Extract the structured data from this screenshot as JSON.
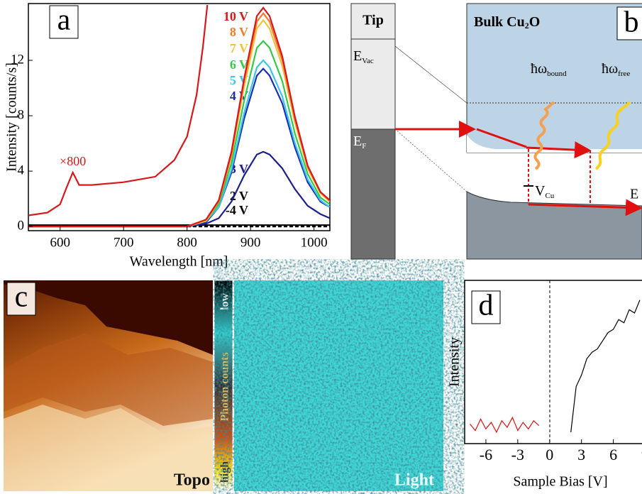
{
  "chart_data": [
    {
      "type": "line",
      "panel": "a",
      "y_label": "Intensity [counts/s]",
      "x_label": "Wavelength [nm]",
      "x": [
        550,
        600,
        700,
        800,
        830,
        850,
        870,
        890,
        910,
        920,
        930,
        950,
        970,
        990,
        1010,
        1025
      ],
      "xlim": [
        550,
        1025
      ],
      "ylim": [
        -0.3,
        16.1
      ],
      "xticks": [
        600,
        700,
        800,
        900,
        1000
      ],
      "yticks": [
        0,
        4,
        8,
        12
      ],
      "series": [
        {
          "name": "10 V",
          "color": "#d7191c",
          "values": [
            0,
            0,
            0,
            0,
            0.5,
            1.9,
            5.4,
            10.7,
            15.2,
            15.8,
            15.2,
            12.3,
            7.9,
            4.4,
            2.5,
            1.9
          ]
        },
        {
          "name": "8 V",
          "color": "#ef7d2d",
          "values": [
            0,
            0,
            0,
            0,
            0.5,
            1.8,
            5.2,
            10.5,
            14.8,
            15.4,
            14.8,
            12.0,
            7.7,
            4.3,
            2.5,
            1.8
          ]
        },
        {
          "name": "7 V",
          "color": "#f5c23c",
          "values": [
            0,
            0,
            0,
            0,
            0.4,
            1.8,
            5.1,
            10.1,
            14.3,
            14.9,
            14.3,
            11.6,
            7.5,
            4.2,
            2.4,
            1.8
          ]
        },
        {
          "name": "6 V",
          "color": "#35c94a",
          "values": [
            0,
            0,
            0,
            0,
            0.4,
            1.6,
            4.6,
            9.1,
            12.9,
            13.4,
            12.9,
            10.5,
            6.7,
            3.8,
            2.1,
            1.6
          ]
        },
        {
          "name": "5 V",
          "color": "#3cc5e8",
          "values": [
            0,
            0,
            0,
            0,
            0.4,
            1.4,
            4.1,
            8.2,
            11.5,
            12.0,
            11.5,
            9.4,
            6.0,
            3.4,
            1.9,
            1.4
          ]
        },
        {
          "name": "4 V",
          "color": "#1a2fb4",
          "values": [
            0,
            0,
            0,
            0,
            0.3,
            1.4,
            3.9,
            7.8,
            10.9,
            11.4,
            10.9,
            8.9,
            5.7,
            3.2,
            1.8,
            1.4
          ]
        },
        {
          "name": "3 V",
          "color": "#1c1f8c",
          "values": [
            0,
            0,
            0,
            0,
            0.2,
            0.6,
            1.8,
            3.7,
            5.2,
            5.4,
            5.2,
            4.2,
            2.7,
            1.5,
            0.9,
            0.6
          ]
        },
        {
          "name": "2 V",
          "color": "#000000",
          "values": [
            0.1,
            0.1,
            0.1,
            0.1,
            0.1,
            0.1,
            0.1,
            0.1,
            0.1,
            0.1,
            0.1,
            0.1,
            0.1,
            0.1,
            0.1,
            0.1
          ]
        },
        {
          "name": "-4 V",
          "color": "#000000",
          "dash": true,
          "values": [
            0,
            0,
            0,
            0,
            0,
            0,
            0,
            0,
            0,
            0,
            0,
            0,
            0,
            0,
            0,
            0
          ]
        },
        {
          "name": "×800",
          "color": "#d7191c",
          "x": [
            550,
            580,
            600,
            610,
            620,
            630,
            650,
            700,
            750,
            780,
            800,
            815,
            825,
            832
          ],
          "values": [
            0.8,
            1.0,
            1.6,
            2.8,
            3.9,
            3.0,
            3.0,
            3.2,
            3.6,
            4.8,
            6.5,
            9.5,
            13.0,
            16.0
          ]
        }
      ]
    },
    {
      "type": "line",
      "panel": "d",
      "y_label": "Intensity",
      "x_label": "Sample Bias [V]",
      "xlim": [
        -8,
        8.7
      ],
      "ylim": [
        0,
        10
      ],
      "xticks": [
        -6,
        -3,
        0,
        3,
        6,
        9
      ],
      "series": [
        {
          "color": "#e01010",
          "x": [
            -7.5,
            -7,
            -6.5,
            -6,
            -5.5,
            -5,
            -4.5,
            -4,
            -3.5,
            -3,
            -2.5,
            -2,
            -1.5,
            -1
          ],
          "values": [
            1.2,
            0.8,
            1.5,
            0.9,
            1.3,
            0.7,
            1.4,
            1.0,
            1.6,
            0.8,
            1.3,
            0.9,
            1.4,
            1.1
          ]
        },
        {
          "color": "#000000",
          "x": [
            2,
            2.5,
            3,
            3.5,
            4,
            4.5,
            5,
            5.5,
            6,
            6.5,
            7,
            7.5,
            8,
            8.5
          ],
          "values": [
            0.7,
            3.5,
            4.2,
            5.2,
            5.6,
            5.8,
            6.3,
            6.8,
            7.0,
            7.6,
            7.4,
            8.2,
            8.0,
            8.8
          ]
        }
      ]
    }
  ],
  "diagram": {
    "panel": "b",
    "tip": "Tip",
    "bulk": [
      "Bulk Cu",
      "2",
      "O"
    ],
    "e_vac": [
      "E",
      "Vac"
    ],
    "e_f": [
      "E",
      "F"
    ],
    "hw_bound": [
      "ħω",
      "bound"
    ],
    "hw_free": [
      "ħω",
      "free"
    ],
    "v_cu": [
      "V",
      "Cu"
    ],
    "e_cut": "E"
  },
  "images": {
    "panel": "c",
    "topo": "Topo",
    "light": "Light",
    "colorbar": "Photon counts",
    "low": "low",
    "high": "high"
  }
}
